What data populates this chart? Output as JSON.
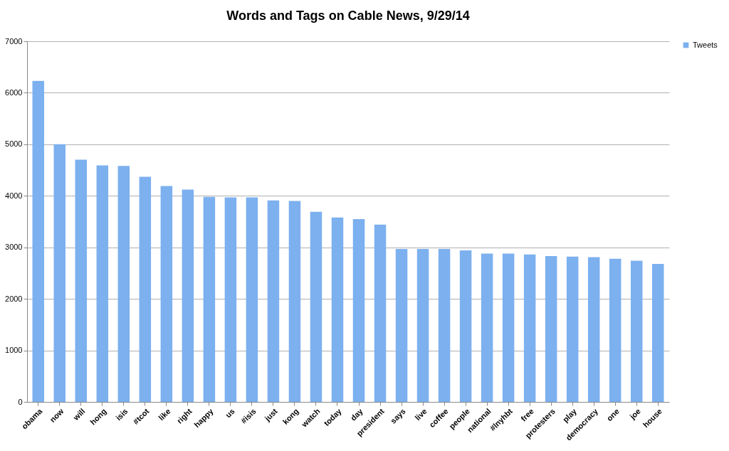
{
  "chart_data": {
    "type": "bar",
    "title": "Words and Tags on Cable News, 9/29/14",
    "categories": [
      "obama",
      "now",
      "will",
      "hong",
      "isis",
      "#tcot",
      "like",
      "right",
      "happy",
      "us",
      "#isis",
      "just",
      "kong",
      "watch",
      "today",
      "day",
      "president",
      "says",
      "live",
      "coffee",
      "people",
      "national",
      "#lnyhbt",
      "free",
      "protesters",
      "play",
      "democracy",
      "one",
      "joe",
      "house"
    ],
    "series": [
      {
        "name": "Tweets",
        "color": "#7cb0ef",
        "values": [
          6230,
          5000,
          4700,
          4590,
          4580,
          4370,
          4190,
          4120,
          3980,
          3970,
          3970,
          3910,
          3900,
          3690,
          3580,
          3550,
          3440,
          2970,
          2970,
          2970,
          2940,
          2880,
          2880,
          2860,
          2830,
          2820,
          2810,
          2780,
          2740,
          2680
        ]
      }
    ],
    "ylim": [
      0,
      7000
    ],
    "yticks": [
      0,
      1000,
      2000,
      3000,
      4000,
      5000,
      6000,
      7000
    ],
    "grid": "y",
    "legend": "right"
  }
}
